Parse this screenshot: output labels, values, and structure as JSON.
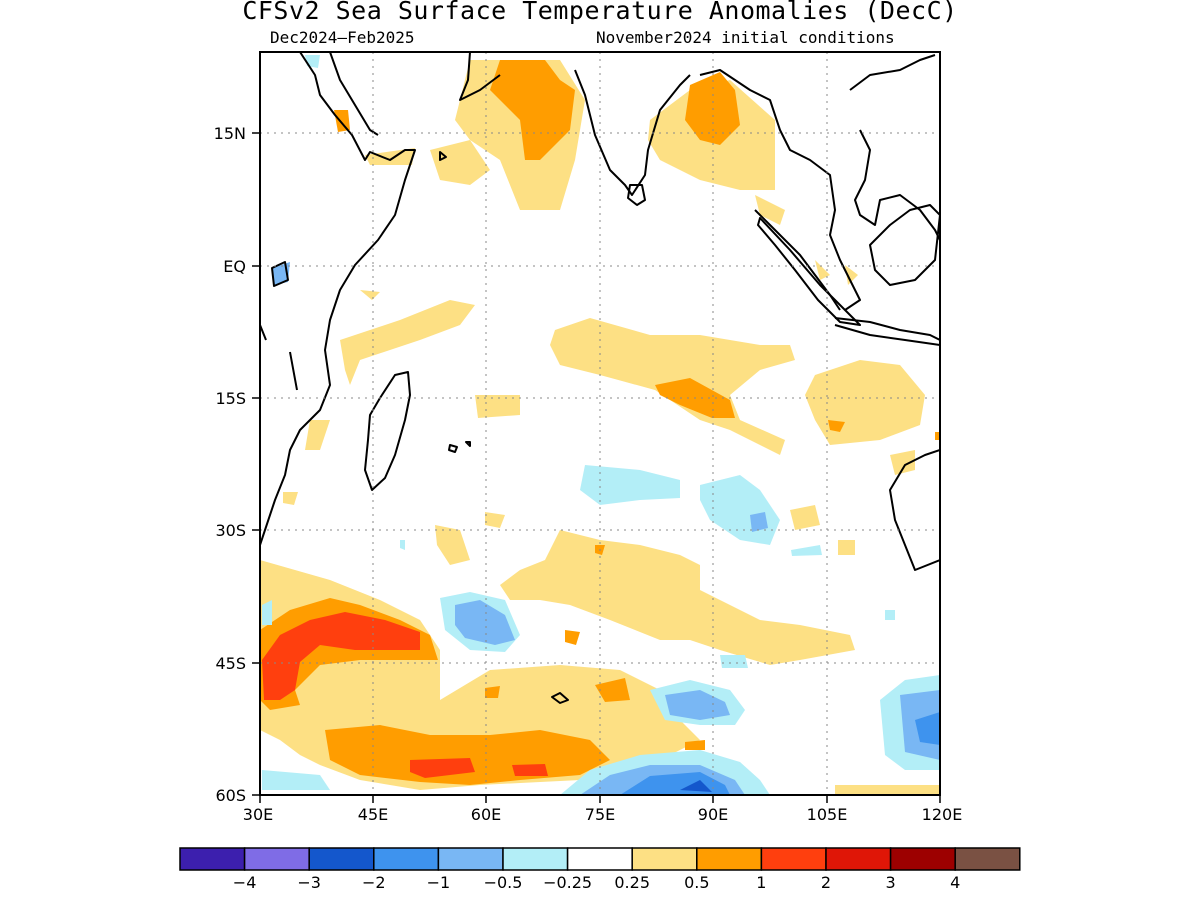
{
  "title": "CFSv2 Sea Surface Temperature Anomalies (DecC)",
  "subtitle_left": "Dec2024–Feb2025",
  "subtitle_right": "November2024 initial conditions",
  "axes": {
    "lon_ticks": [
      "30E",
      "45E",
      "60E",
      "75E",
      "90E",
      "105E",
      "120E"
    ],
    "lat_ticks": [
      "15N",
      "EQ",
      "15S",
      "30S",
      "45S",
      "60S"
    ]
  },
  "colorbar": {
    "colors": [
      "#3c1fae",
      "#7f6ce6",
      "#1457cc",
      "#3e93ee",
      "#79b7f4",
      "#b3eef7",
      "#ffffff",
      "#fde084",
      "#ff9d00",
      "#ff3f0e",
      "#df1607",
      "#9d0000",
      "#7a5143"
    ],
    "labels": [
      "−4",
      "−3",
      "−2",
      "−1",
      "−0.5",
      "−0.25",
      "0.25",
      "0.5",
      "1",
      "2",
      "3",
      "4"
    ]
  }
}
